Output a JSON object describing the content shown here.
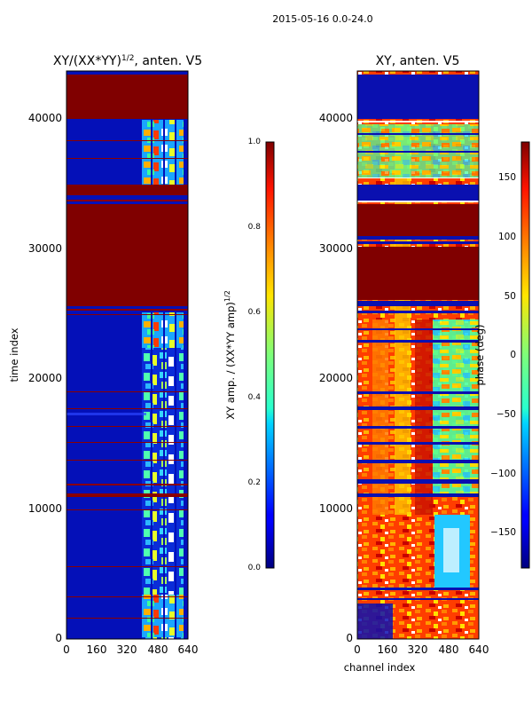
{
  "suptitle": "2015-05-16 0.0-24.0",
  "chart_data": [
    {
      "type": "heatmap",
      "title_main": "XY/(XX*YY)",
      "title_sup": "1/2",
      "title_rest": ", anten. V5",
      "xlabel": "",
      "ylabel": "time index",
      "xlim": [
        0,
        640
      ],
      "ylim": [
        0,
        43500
      ],
      "xticks": [
        "0",
        "160",
        "320",
        "480",
        "640"
      ],
      "yticks": [
        "0",
        "10000",
        "20000",
        "30000",
        "40000"
      ],
      "colormap": "jet",
      "colorbar": {
        "label_main": "XY amp. / (XX*YY amp)",
        "label_sup": "1/2",
        "ticks": [
          "0.0",
          "0.2",
          "0.4",
          "0.6",
          "0.8",
          "1.0"
        ],
        "range": [
          0.0,
          1.0
        ]
      },
      "saturated_time_blocks": [
        [
          25500,
          33500
        ],
        [
          34200,
          35000
        ],
        [
          40000,
          43300
        ]
      ],
      "active_channel_band": [
        400,
        600
      ]
    },
    {
      "type": "heatmap",
      "title": "XY, anten. V5",
      "xlabel": "channel index",
      "ylabel": "",
      "xlim": [
        0,
        640
      ],
      "ylim": [
        0,
        43500
      ],
      "xticks": [
        "0",
        "160",
        "320",
        "480",
        "640"
      ],
      "yticks": [
        "0",
        "10000",
        "20000",
        "30000",
        "40000"
      ],
      "colormap": "jet",
      "colorbar": {
        "label": "phase (deg)",
        "ticks": [
          "−150",
          "−100",
          "−50",
          "0",
          "50",
          "100",
          "150"
        ],
        "range": [
          -180,
          180
        ]
      }
    }
  ]
}
